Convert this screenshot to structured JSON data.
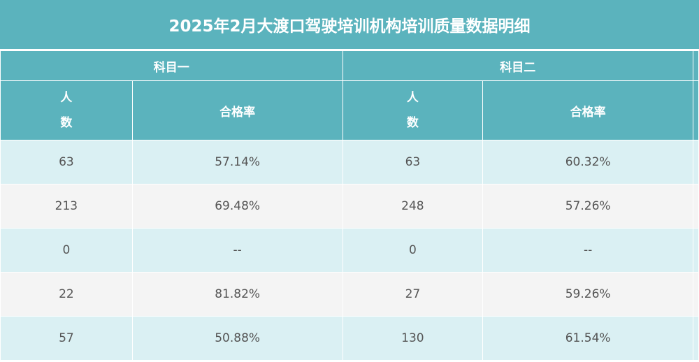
{
  "title": "2025年2月大渡口驾驶培训机构培训质量数据明细",
  "groups": [
    "科目一",
    "科目二"
  ],
  "columns": {
    "people_chars": [
      "人",
      "数"
    ],
    "pass_rate": "合格率"
  },
  "rows": [
    {
      "k1_people": "63",
      "k1_rate": "57.14%",
      "k2_people": "63",
      "k2_rate": "60.32%"
    },
    {
      "k1_people": "213",
      "k1_rate": "69.48%",
      "k2_people": "248",
      "k2_rate": "57.26%"
    },
    {
      "k1_people": "0",
      "k1_rate": "--",
      "k2_people": "0",
      "k2_rate": "--"
    },
    {
      "k1_people": "22",
      "k1_rate": "81.82%",
      "k2_people": "27",
      "k2_rate": "59.26%"
    },
    {
      "k1_people": "57",
      "k1_rate": "50.88%",
      "k2_people": "130",
      "k2_rate": "61.54%"
    }
  ],
  "colors": {
    "header_bg": "#5bb3bd",
    "row_odd_bg": "#daf0f3",
    "row_even_bg": "#f4f4f4",
    "cell_text": "#555555"
  }
}
